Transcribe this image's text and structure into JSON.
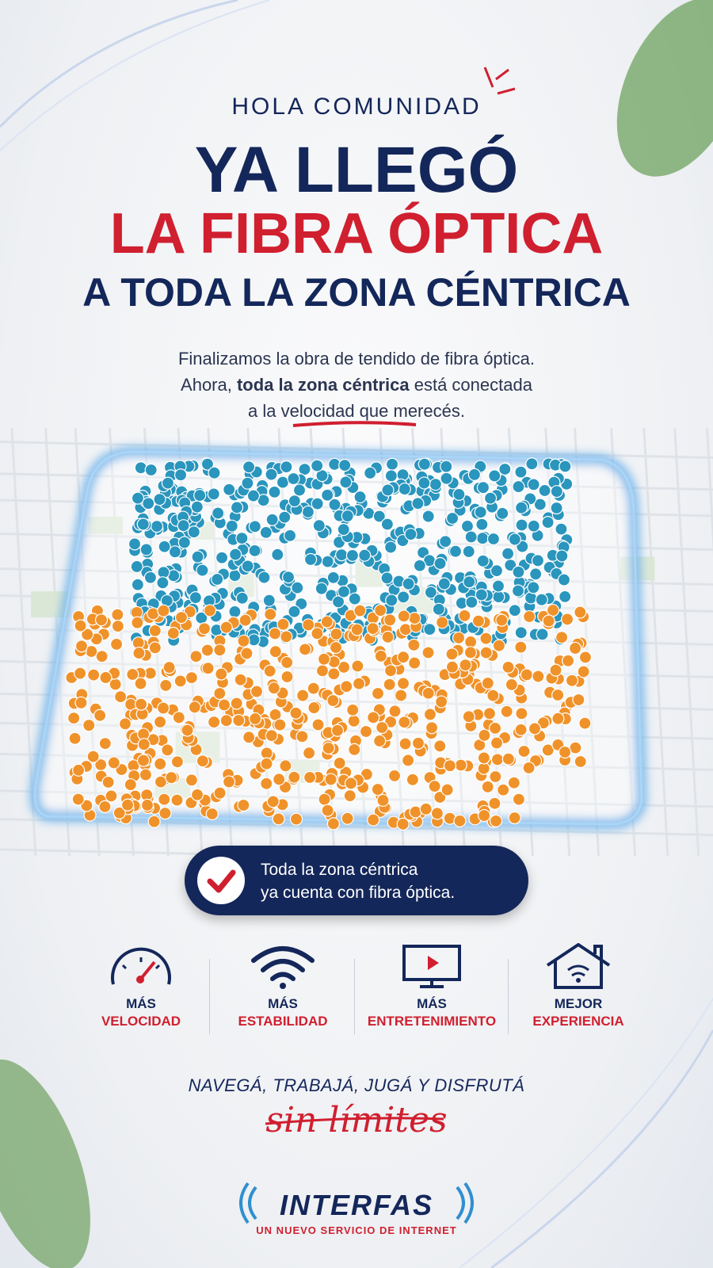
{
  "header": {
    "greeting": "HOLA COMUNIDAD",
    "title_lines": [
      "YA LLEGÓ",
      "LA FIBRA ÓPTICA",
      "A TODA LA ZONA CÉNTRICA"
    ]
  },
  "intro": {
    "line1": "Finalizamos la obra de tendido de fibra óptica.",
    "line2_start": "Ahora,",
    "line2_bold": "toda la zona céntrica",
    "line2_end": "está conectada",
    "line3": "a la velocidad que merecés."
  },
  "badge": {
    "line1": "Toda la zona céntrica",
    "line2": "ya cuenta con fibra óptica."
  },
  "features": [
    {
      "top": "MÁS",
      "bottom": "VELOCIDAD"
    },
    {
      "top": "MÁS",
      "bottom": "ESTABILIDAD"
    },
    {
      "top": "MÁS",
      "bottom": "ENTRETENIMIENTO"
    },
    {
      "top": "MEJOR",
      "bottom": "EXPERIENCIA"
    }
  ],
  "tagline": {
    "line1": "NAVEGÁ, TRABAJÁ, JUGÁ Y DISFRUTÁ",
    "script": "sin límites"
  },
  "brand": {
    "name": "INTERFAS",
    "slogan": "UN NUEVO SERVICIO DE INTERNET"
  }
}
